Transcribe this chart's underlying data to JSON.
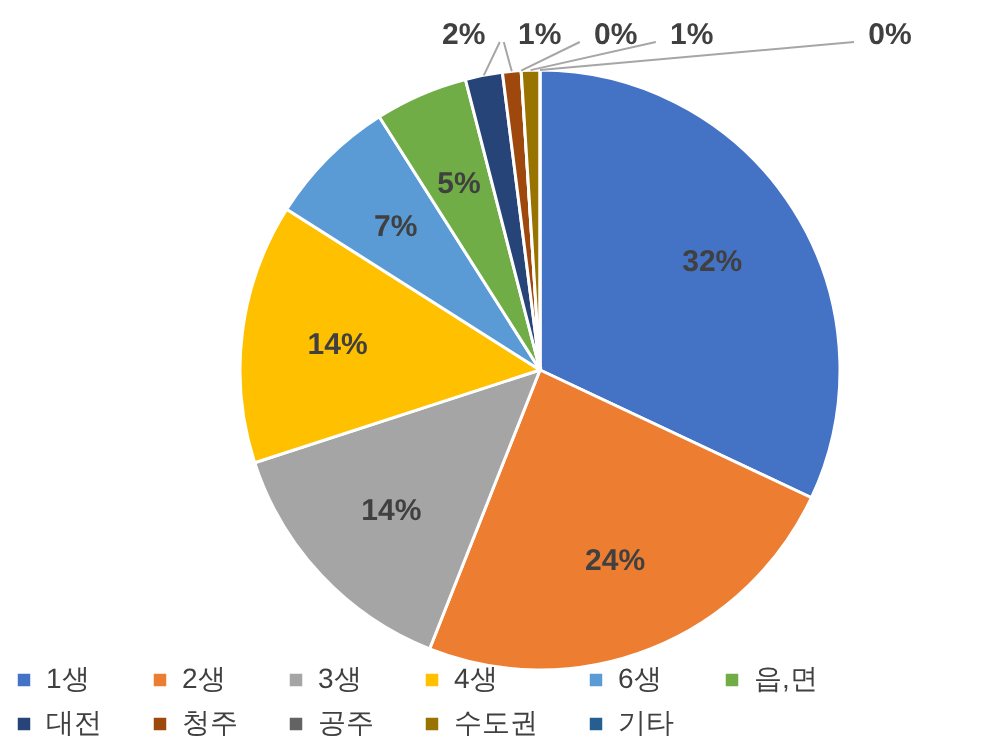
{
  "chart_data": {
    "type": "pie",
    "categories": [
      "1생",
      "2생",
      "3생",
      "4생",
      "6생",
      "읍,면",
      "대전",
      "청주",
      "공주",
      "수도권",
      "기타"
    ],
    "values": [
      32,
      24,
      14,
      14,
      7,
      5,
      2,
      1,
      0,
      1,
      0
    ],
    "value_labels": [
      "32%",
      "24%",
      "14%",
      "14%",
      "7%",
      "5%",
      "2%",
      "1%",
      "0%",
      "1%",
      "0%"
    ],
    "colors": [
      "#4472c4",
      "#ed7d31",
      "#a5a5a5",
      "#ffc000",
      "#5b9bd5",
      "#70ad47",
      "#264478",
      "#9e480e",
      "#636363",
      "#997300",
      "#255e91"
    ],
    "legend": "bottom"
  }
}
